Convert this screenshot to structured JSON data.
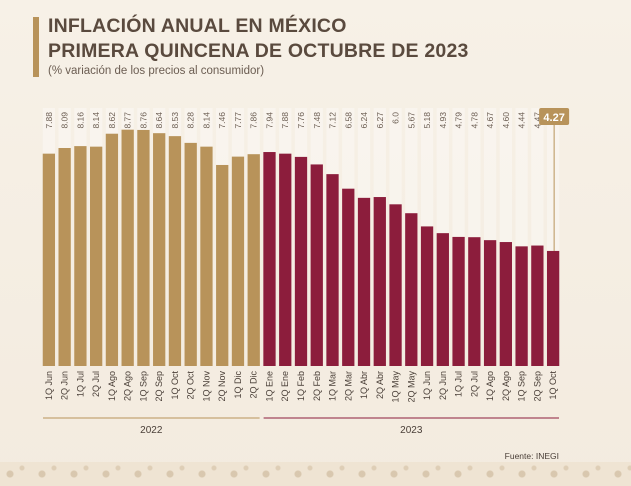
{
  "header": {
    "title_line1": "INFLACIÓN ANUAL EN MÉXICO",
    "title_line2": "PRIMERA QUINCENA DE OCTUBRE DE 2023",
    "subtitle": "(% variación de los precios al consumidor)"
  },
  "footer": {
    "source": "Fuente: INEGI"
  },
  "colors": {
    "year_2022": "#b8935a",
    "year_2023": "#8c1d3c",
    "highlight_label_bg": "#b8935a"
  },
  "chart_data": {
    "type": "bar",
    "title": "INFLACIÓN ANUAL EN MÉXICO PRIMERA QUINCENA DE OCTUBRE DE 2023",
    "ylabel": "",
    "xlabel": "",
    "ylim": [
      0,
      9.5
    ],
    "grid": false,
    "categories": [
      "1Q Jun",
      "2Q Jun",
      "1Q Jul",
      "2Q Jul",
      "1Q Ago",
      "2Q Ago",
      "1Q Sep",
      "2Q Sep",
      "1Q Oct",
      "2Q Oct",
      "1Q Nov",
      "2Q Nov",
      "1Q Dic",
      "2Q Dic",
      "1Q Ene",
      "2Q Ene",
      "1Q Feb",
      "2Q Feb",
      "1Q Mar",
      "2Q Mar",
      "1Q Abr",
      "2Q Abr",
      "1Q May",
      "2Q May",
      "1Q Jun",
      "2Q Jun",
      "1Q Jul",
      "2Q Jul",
      "1Q Ago",
      "2Q Ago",
      "1Q Sep",
      "2Q Sep",
      "1Q Oct"
    ],
    "values": [
      7.88,
      8.09,
      8.16,
      8.14,
      8.62,
      8.77,
      8.76,
      8.64,
      8.53,
      8.28,
      8.14,
      7.46,
      7.77,
      7.86,
      7.94,
      7.88,
      7.76,
      7.48,
      7.12,
      6.58,
      6.24,
      6.27,
      6.0,
      5.67,
      5.18,
      4.93,
      4.79,
      4.78,
      4.67,
      4.6,
      4.44,
      4.47,
      4.27
    ],
    "value_labels": [
      "7.88",
      "8.09",
      "8.16",
      "8.14",
      "8.62",
      "8.77",
      "8.76",
      "8.64",
      "8.53",
      "8.28",
      "8.14",
      "7.46",
      "7.77",
      "7.86",
      "7.94",
      "7.88",
      "7.76",
      "7.48",
      "7.12",
      "6.58",
      "6.24",
      "6.27",
      "6.0",
      "5.67",
      "5.18",
      "4.93",
      "4.79",
      "4.78",
      "4.67",
      "4.60",
      "4.44",
      "4.47",
      "4.27"
    ],
    "years": [
      {
        "label": "2022",
        "count": 14
      },
      {
        "label": "2023",
        "count": 19
      }
    ],
    "highlight_last": true
  }
}
